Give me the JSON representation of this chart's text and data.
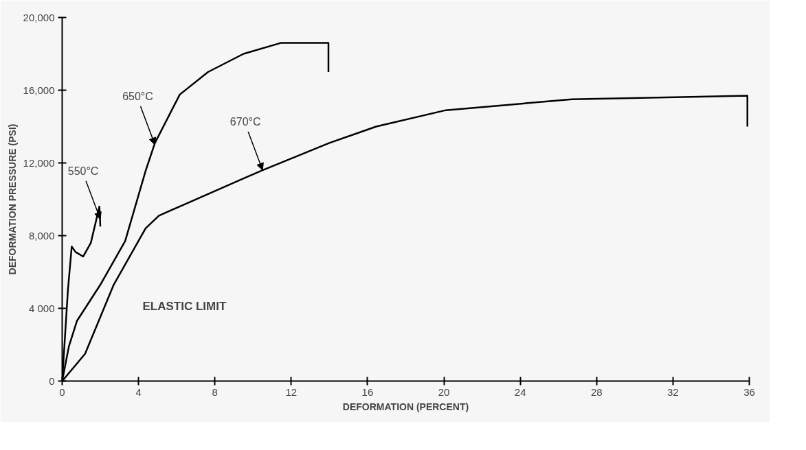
{
  "chart_data": {
    "type": "line",
    "xlabel": "DEFORMATION (PERCENT)",
    "ylabel": "DEFORMATION PRESSURE (PSI)",
    "xlim": [
      0,
      36
    ],
    "ylim": [
      0,
      20000
    ],
    "xticks": [
      0,
      4,
      8,
      12,
      16,
      20,
      24,
      28,
      32,
      36
    ],
    "yticks": [
      0,
      {
        "value": 4000,
        "label": "4 000"
      },
      {
        "value": 8000,
        "label": "8,000"
      },
      {
        "value": 12000,
        "label": "12,000"
      },
      {
        "value": 16000,
        "label": "16,000"
      },
      {
        "value": 20000,
        "label": "20,000"
      }
    ],
    "grid": false,
    "marker": "none",
    "line_style": "solid",
    "series": [
      {
        "color": "#000000",
        "x": [
          0,
          0.3,
          0.5,
          0.7,
          1.1,
          1.5,
          1.95,
          2.0
        ],
        "values": [
          0,
          5000,
          7400,
          7100,
          6850,
          7600,
          9600,
          8500
        ]
      },
      {
        "color": "#000000",
        "x": [
          0,
          0.35,
          0.77,
          2.0,
          3.3,
          4.37,
          4.86,
          6.16,
          7.64,
          9.5,
          11.45,
          13.95,
          13.95
        ],
        "values": [
          0,
          1900,
          3300,
          5300,
          7700,
          11560,
          13100,
          15760,
          17000,
          18000,
          18600,
          18600,
          17000
        ]
      },
      {
        "color": "#000000",
        "x": [
          0,
          1.2,
          2.7,
          4.37,
          5.07,
          9.4,
          10.5,
          14.0,
          16.45,
          20.1,
          26.7,
          35.9,
          35.9
        ],
        "values": [
          0,
          1500,
          5300,
          8400,
          9100,
          11100,
          11600,
          13100,
          14000,
          14900,
          15500,
          15700,
          14000
        ]
      }
    ],
    "annotations": [
      {
        "text": "550°C",
        "x": 2.0,
        "y": 8900
      },
      {
        "text": "650°C",
        "x": 4.86,
        "y": 13000
      },
      {
        "text": "670°C",
        "x": 10.5,
        "y": 11600
      },
      "ELASTIC LIMIT"
    ]
  }
}
